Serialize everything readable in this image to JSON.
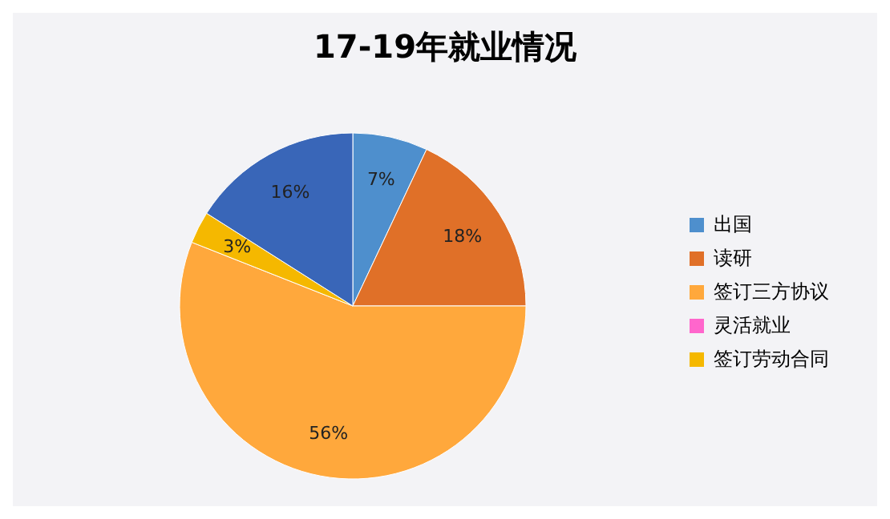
{
  "chart_data": {
    "type": "pie",
    "title": "17-19年就业情况",
    "categories": [
      "出国",
      "读研",
      "签订三方协议",
      "灵活就业",
      "签订劳动合同",
      null
    ],
    "values": [
      7,
      18,
      56,
      0,
      3,
      16
    ],
    "value_labels": [
      "7%",
      "18%",
      "56%",
      null,
      "3%",
      "16%"
    ],
    "colors": [
      "#4e8fcd",
      "#e07028",
      "#ffa83c",
      "#ff66cc",
      "#f5b800",
      "#3966b8"
    ],
    "legend": "right"
  }
}
